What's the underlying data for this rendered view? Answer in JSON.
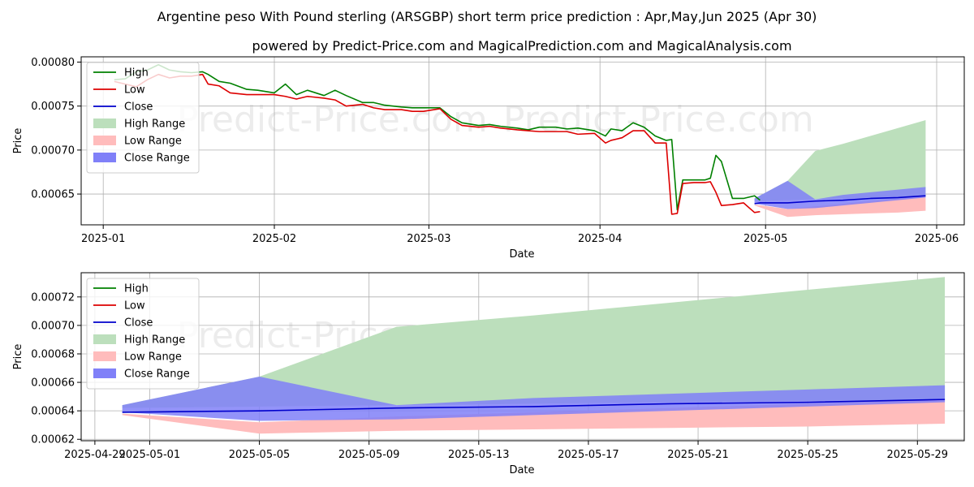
{
  "title_line1": "Argentine peso With Pound sterling (ARSGBP) short term price prediction : Apr,May,Jun 2025 (Apr 30)",
  "title_line2": "powered by Predict-Price.com and MagicalPrediction.com and MagicalAnalysis.com",
  "watermark": "Predict-Price.com",
  "colors": {
    "high": "#008000",
    "low": "#dd0000",
    "close": "#0000cc",
    "high_range": "#bcdfbc",
    "low_range": "#ffbcbc",
    "close_range": "#8080f8"
  },
  "chart_data": [
    {
      "type": "line",
      "xlabel": "Date",
      "ylabel": "Price",
      "xlim": [
        "2024-12-28",
        "2025-06-06"
      ],
      "ylim": [
        0.000615,
        0.000806
      ],
      "x_ticks": [
        "2025-01",
        "2025-02",
        "2025-03",
        "2025-04",
        "2025-05",
        "2025-06"
      ],
      "x_tick_dates": [
        "2025-01-01",
        "2025-02-01",
        "2025-03-01",
        "2025-04-01",
        "2025-05-01",
        "2025-06-01"
      ],
      "y_ticks": [
        "0.00065",
        "0.00070",
        "0.00075",
        "0.00080"
      ],
      "y_tick_values": [
        0.00065,
        0.0007,
        0.00075,
        0.0008
      ],
      "legend": [
        "High",
        "Low",
        "Close",
        "High Range",
        "Low Range",
        "Close Range"
      ],
      "legend_loc": "upper left",
      "grid": true,
      "series": [
        {
          "name": "High",
          "x": [
            "2025-01-03",
            "2025-01-05",
            "2025-01-07",
            "2025-01-09",
            "2025-01-11",
            "2025-01-13",
            "2025-01-15",
            "2025-01-17",
            "2025-01-19",
            "2025-01-20",
            "2025-01-22",
            "2025-01-24",
            "2025-01-27",
            "2025-01-29",
            "2025-02-01",
            "2025-02-03",
            "2025-02-05",
            "2025-02-07",
            "2025-02-10",
            "2025-02-12",
            "2025-02-14",
            "2025-02-17",
            "2025-02-19",
            "2025-02-21",
            "2025-02-24",
            "2025-02-26",
            "2025-02-28",
            "2025-03-03",
            "2025-03-05",
            "2025-03-07",
            "2025-03-10",
            "2025-03-12",
            "2025-03-14",
            "2025-03-17",
            "2025-03-19",
            "2025-03-21",
            "2025-03-24",
            "2025-03-26",
            "2025-03-28",
            "2025-03-31",
            "2025-04-02",
            "2025-04-03",
            "2025-04-05",
            "2025-04-07",
            "2025-04-09",
            "2025-04-11",
            "2025-04-13",
            "2025-04-14",
            "2025-04-15",
            "2025-04-16",
            "2025-04-18",
            "2025-04-20",
            "2025-04-21",
            "2025-04-22",
            "2025-04-23",
            "2025-04-25",
            "2025-04-27",
            "2025-04-29",
            "2025-04-30"
          ],
          "values": [
            0.00078,
            0.000781,
            0.000789,
            0.000791,
            0.000797,
            0.000791,
            0.000789,
            0.000788,
            0.000789,
            0.000786,
            0.000778,
            0.000776,
            0.000769,
            0.000768,
            0.000765,
            0.000775,
            0.000763,
            0.000768,
            0.000762,
            0.000768,
            0.000762,
            0.000754,
            0.000754,
            0.000751,
            0.000749,
            0.000748,
            0.000748,
            0.000748,
            0.000738,
            0.000731,
            0.000728,
            0.000729,
            0.000727,
            0.000725,
            0.000723,
            0.000726,
            0.000726,
            0.000724,
            0.000725,
            0.000722,
            0.000716,
            0.000724,
            0.000722,
            0.000731,
            0.000726,
            0.000716,
            0.000711,
            0.000712,
            0.000632,
            0.000666,
            0.000666,
            0.000666,
            0.000668,
            0.000694,
            0.000687,
            0.000645,
            0.000645,
            0.000648,
            0.000643
          ]
        },
        {
          "name": "Low",
          "x": [
            "2025-01-03",
            "2025-01-05",
            "2025-01-07",
            "2025-01-09",
            "2025-01-11",
            "2025-01-13",
            "2025-01-15",
            "2025-01-17",
            "2025-01-19",
            "2025-01-20",
            "2025-01-22",
            "2025-01-24",
            "2025-01-27",
            "2025-01-29",
            "2025-02-01",
            "2025-02-03",
            "2025-02-05",
            "2025-02-07",
            "2025-02-10",
            "2025-02-12",
            "2025-02-14",
            "2025-02-17",
            "2025-02-19",
            "2025-02-21",
            "2025-02-24",
            "2025-02-26",
            "2025-02-28",
            "2025-03-03",
            "2025-03-05",
            "2025-03-07",
            "2025-03-10",
            "2025-03-12",
            "2025-03-14",
            "2025-03-17",
            "2025-03-19",
            "2025-03-21",
            "2025-03-24",
            "2025-03-26",
            "2025-03-28",
            "2025-03-31",
            "2025-04-02",
            "2025-04-03",
            "2025-04-05",
            "2025-04-07",
            "2025-04-09",
            "2025-04-11",
            "2025-04-13",
            "2025-04-14",
            "2025-04-15",
            "2025-04-16",
            "2025-04-18",
            "2025-04-20",
            "2025-04-21",
            "2025-04-22",
            "2025-04-23",
            "2025-04-25",
            "2025-04-27",
            "2025-04-29",
            "2025-04-30"
          ],
          "values": [
            0.000778,
            0.000775,
            0.000772,
            0.00078,
            0.000786,
            0.000782,
            0.000784,
            0.000784,
            0.000786,
            0.000775,
            0.000773,
            0.000765,
            0.000763,
            0.000763,
            0.000763,
            0.000761,
            0.000758,
            0.000761,
            0.000759,
            0.000757,
            0.00075,
            0.000752,
            0.000748,
            0.000746,
            0.000746,
            0.000744,
            0.000744,
            0.000747,
            0.000735,
            0.000728,
            0.000726,
            0.000727,
            0.000725,
            0.000723,
            0.000722,
            0.000721,
            0.000721,
            0.000721,
            0.000718,
            0.000719,
            0.000708,
            0.000711,
            0.000714,
            0.000722,
            0.000722,
            0.000708,
            0.000708,
            0.000627,
            0.000628,
            0.000662,
            0.000663,
            0.000663,
            0.000664,
            0.000652,
            0.000637,
            0.000638,
            0.00064,
            0.000629,
            0.00063
          ]
        },
        {
          "name": "Close",
          "x": [
            "2025-04-29",
            "2025-04-30",
            "2025-05-05",
            "2025-05-10",
            "2025-05-15",
            "2025-05-20",
            "2025-05-25",
            "2025-05-30"
          ],
          "values": [
            0.000639,
            0.00064,
            0.00064,
            0.000642,
            0.000643,
            0.000645,
            0.000646,
            0.000648
          ]
        }
      ],
      "ranges": [
        {
          "name": "High Range",
          "x": [
            "2025-04-29",
            "2025-05-05",
            "2025-05-10",
            "2025-05-15",
            "2025-05-20",
            "2025-05-25",
            "2025-05-30"
          ],
          "upper": [
            0.000645,
            0.000665,
            0.000699,
            0.000707,
            0.000716,
            0.000725,
            0.000734
          ],
          "lower": [
            0.000642,
            0.000643,
            0.000644,
            0.000645,
            0.000646,
            0.000647,
            0.000648
          ]
        },
        {
          "name": "Low Range",
          "x": [
            "2025-04-29",
            "2025-05-05",
            "2025-05-10",
            "2025-05-15",
            "2025-05-20",
            "2025-05-25",
            "2025-05-30"
          ],
          "upper": [
            0.000638,
            0.000633,
            0.000636,
            0.000639,
            0.000642,
            0.000645,
            0.000648
          ],
          "lower": [
            0.000637,
            0.000624,
            0.000626,
            0.000627,
            0.000628,
            0.000629,
            0.000631
          ]
        },
        {
          "name": "Close Range",
          "x": [
            "2025-04-29",
            "2025-05-05",
            "2025-05-10",
            "2025-05-15",
            "2025-05-20",
            "2025-05-25",
            "2025-05-30"
          ],
          "upper": [
            0.000645,
            0.000665,
            0.000644,
            0.000649,
            0.000652,
            0.000655,
            0.000658
          ],
          "lower": [
            0.000639,
            0.000633,
            0.000634,
            0.000637,
            0.00064,
            0.000643,
            0.000646
          ]
        }
      ]
    },
    {
      "type": "line",
      "xlabel": "Date",
      "ylabel": "Price",
      "xlim": [
        "2025-04-28T12:00",
        "2025-05-30T17:00"
      ],
      "ylim": [
        0.000619,
        0.000737
      ],
      "x_ticks": [
        "2025-04-29",
        "2025-05-01",
        "2025-05-05",
        "2025-05-09",
        "2025-05-13",
        "2025-05-17",
        "2025-05-21",
        "2025-05-25",
        "2025-05-29"
      ],
      "x_tick_dates": [
        "2025-04-29",
        "2025-05-01",
        "2025-05-05",
        "2025-05-09",
        "2025-05-13",
        "2025-05-17",
        "2025-05-21",
        "2025-05-25",
        "2025-05-29"
      ],
      "y_ticks": [
        "0.00062",
        "0.00064",
        "0.00066",
        "0.00068",
        "0.00070",
        "0.00072"
      ],
      "y_tick_values": [
        0.00062,
        0.00064,
        0.00066,
        0.00068,
        0.0007,
        0.00072
      ],
      "legend": [
        "High",
        "Low",
        "Close",
        "High Range",
        "Low Range",
        "Close Range"
      ],
      "legend_loc": "upper left",
      "grid": true,
      "series": [
        {
          "name": "Close",
          "x": [
            "2025-04-30",
            "2025-05-05",
            "2025-05-10",
            "2025-05-15",
            "2025-05-20",
            "2025-05-25",
            "2025-05-30"
          ],
          "values": [
            0.000639,
            0.00064,
            0.000642,
            0.000643,
            0.000645,
            0.000646,
            0.000648
          ]
        }
      ],
      "ranges": [
        {
          "name": "High Range",
          "x": [
            "2025-04-30",
            "2025-05-05",
            "2025-05-10",
            "2025-05-15",
            "2025-05-20",
            "2025-05-25",
            "2025-05-30"
          ],
          "upper": [
            0.000644,
            0.000664,
            0.000699,
            0.000707,
            0.000716,
            0.000725,
            0.000734
          ],
          "lower": [
            0.000642,
            0.000643,
            0.000644,
            0.000645,
            0.000646,
            0.000647,
            0.000648
          ]
        },
        {
          "name": "Low Range",
          "x": [
            "2025-04-30",
            "2025-05-05",
            "2025-05-10",
            "2025-05-15",
            "2025-05-20",
            "2025-05-25",
            "2025-05-30"
          ],
          "upper": [
            0.000638,
            0.000632,
            0.000636,
            0.000639,
            0.000642,
            0.000645,
            0.000648
          ],
          "lower": [
            0.000637,
            0.000624,
            0.000626,
            0.000627,
            0.000628,
            0.000629,
            0.000631
          ]
        },
        {
          "name": "Close Range",
          "x": [
            "2025-04-30",
            "2025-05-05",
            "2025-05-10",
            "2025-05-15",
            "2025-05-20",
            "2025-05-25",
            "2025-05-30"
          ],
          "upper": [
            0.000644,
            0.000664,
            0.000644,
            0.000649,
            0.000652,
            0.000655,
            0.000658
          ],
          "lower": [
            0.000639,
            0.000633,
            0.000634,
            0.000637,
            0.00064,
            0.000643,
            0.000646
          ]
        }
      ]
    }
  ]
}
